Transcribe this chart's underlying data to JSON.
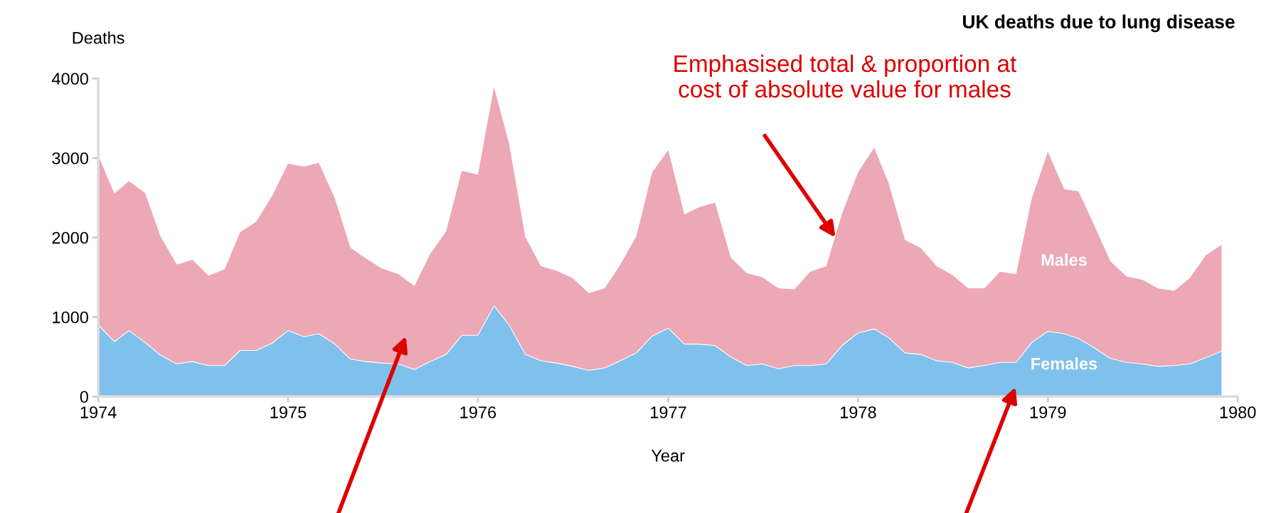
{
  "chart_data": {
    "type": "area",
    "stacked": true,
    "title": "UK deaths due to lung disease",
    "xlabel": "Year",
    "ylabel": "Deaths",
    "x": [
      "1974-01",
      "1974-02",
      "1974-03",
      "1974-04",
      "1974-05",
      "1974-06",
      "1974-07",
      "1974-08",
      "1974-09",
      "1974-10",
      "1974-11",
      "1974-12",
      "1975-01",
      "1975-02",
      "1975-03",
      "1975-04",
      "1975-05",
      "1975-06",
      "1975-07",
      "1975-08",
      "1975-09",
      "1975-10",
      "1975-11",
      "1975-12",
      "1976-01",
      "1976-02",
      "1976-03",
      "1976-04",
      "1976-05",
      "1976-06",
      "1976-07",
      "1976-08",
      "1976-09",
      "1976-10",
      "1976-11",
      "1976-12",
      "1977-01",
      "1977-02",
      "1977-03",
      "1977-04",
      "1977-05",
      "1977-06",
      "1977-07",
      "1977-08",
      "1977-09",
      "1977-10",
      "1977-11",
      "1977-12",
      "1978-01",
      "1978-02",
      "1978-03",
      "1978-04",
      "1978-05",
      "1978-06",
      "1978-07",
      "1978-08",
      "1978-09",
      "1978-10",
      "1978-11",
      "1978-12",
      "1979-01",
      "1979-02",
      "1979-03",
      "1979-04",
      "1979-05",
      "1979-06",
      "1979-07",
      "1979-08",
      "1979-09",
      "1979-10",
      "1979-11",
      "1979-12"
    ],
    "series": [
      {
        "name": "Females",
        "color": "#80c0ec",
        "values": [
          900,
          690,
          830,
          680,
          520,
          410,
          440,
          390,
          390,
          580,
          580,
          670,
          830,
          750,
          790,
          660,
          470,
          440,
          420,
          410,
          340,
          440,
          530,
          770,
          770,
          1140,
          900,
          530,
          450,
          420,
          380,
          330,
          360,
          450,
          550,
          760,
          860,
          660,
          660,
          640,
          500,
          390,
          410,
          350,
          390,
          390,
          410,
          640,
          800,
          850,
          740,
          550,
          530,
          450,
          430,
          360,
          390,
          430,
          430,
          680,
          820,
          790,
          730,
          610,
          480,
          430,
          410,
          380,
          390,
          410,
          490,
          570
        ]
      },
      {
        "name": "Males",
        "color": "#eca8b5",
        "values": [
          2130,
          1860,
          1880,
          1880,
          1490,
          1250,
          1280,
          1130,
          1210,
          1490,
          1620,
          1850,
          2100,
          2140,
          2150,
          1830,
          1400,
          1290,
          1190,
          1130,
          1050,
          1350,
          1550,
          2070,
          2020,
          2750,
          2280,
          1480,
          1190,
          1160,
          1110,
          970,
          1000,
          1210,
          1470,
          2060,
          2240,
          1630,
          1720,
          1800,
          1250,
          1160,
          1090,
          1010,
          960,
          1180,
          1230,
          1660,
          2020,
          2280,
          1940,
          1420,
          1340,
          1190,
          1100,
          1000,
          970,
          1140,
          1110,
          1810,
          2260,
          1820,
          1850,
          1530,
          1220,
          1080,
          1060,
          980,
          940,
          1080,
          1290,
          1340
        ]
      }
    ],
    "xlim": [
      "1974-01-01",
      "1980-01-01"
    ],
    "xticks": [
      {
        "value": "1974-01-01",
        "label": "1974"
      },
      {
        "value": "1975-01-01",
        "label": "1975"
      },
      {
        "value": "1976-01-01",
        "label": "1976"
      },
      {
        "value": "1977-01-01",
        "label": "1977"
      },
      {
        "value": "1978-01-01",
        "label": "1978"
      },
      {
        "value": "1979-01-01",
        "label": "1979"
      },
      {
        "value": "1980-01-01",
        "label": "1980"
      }
    ],
    "ylim": [
      0,
      4000
    ],
    "yticks": [
      0,
      1000,
      2000,
      3000,
      4000
    ],
    "grid": false,
    "legend": false,
    "annotations": [
      "Emphasised total & proportion at\ncost of absolute value for males"
    ]
  }
}
